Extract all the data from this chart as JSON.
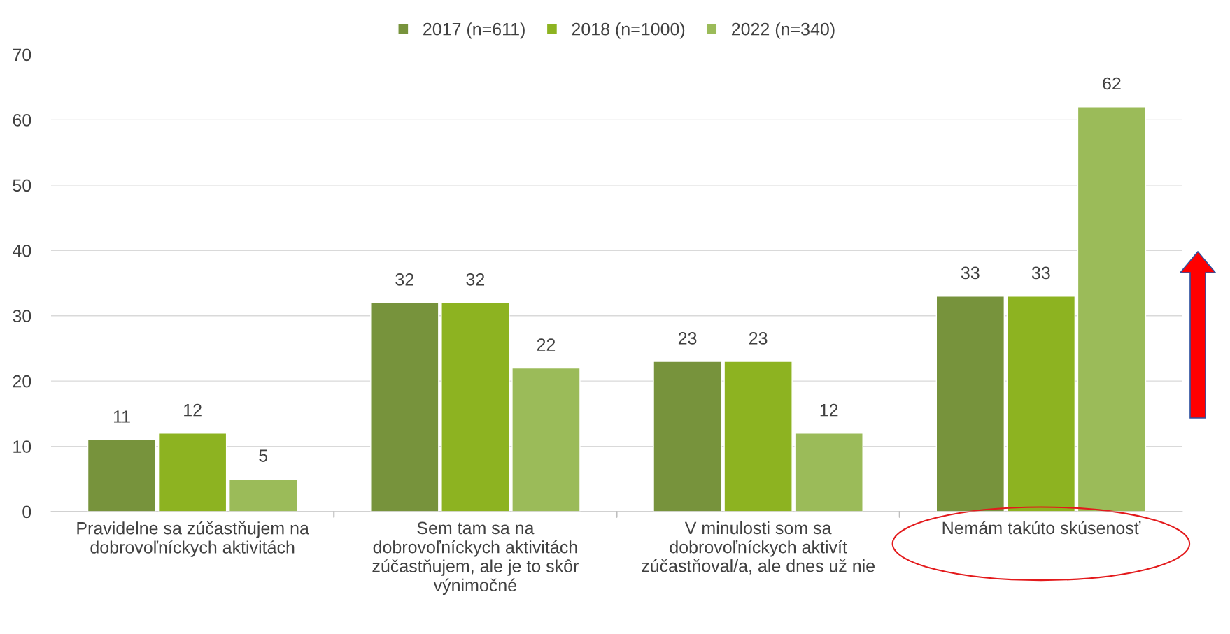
{
  "chart_data": {
    "type": "bar",
    "categories": [
      "Pravidelne sa zúčastňujem na\ndobrovoľníckych aktivitách",
      "Sem tam sa na\ndobrovoľníckych aktivitách\nzúčastňujem, ale je to skôr\nvýnimočné",
      "V minulosti som sa\ndobrovoľníckych aktivít\nzúčastňoval/a, ale dnes už nie",
      "Nemám takúto skúsenosť"
    ],
    "series": [
      {
        "name": "2017 (n=611)",
        "color": "#77933c",
        "values": [
          11,
          32,
          23,
          33
        ]
      },
      {
        "name": "2018 (n=1000)",
        "color": "#8db321",
        "values": [
          12,
          32,
          23,
          33
        ]
      },
      {
        "name": "2022 (n=340)",
        "color": "#9bbb59",
        "values": [
          5,
          22,
          12,
          62
        ]
      }
    ],
    "ylim": [
      0,
      70
    ],
    "yticks": [
      0,
      10,
      20,
      30,
      40,
      50,
      60,
      70
    ],
    "grid": "y",
    "legend": "top",
    "data_labels": true
  }
}
